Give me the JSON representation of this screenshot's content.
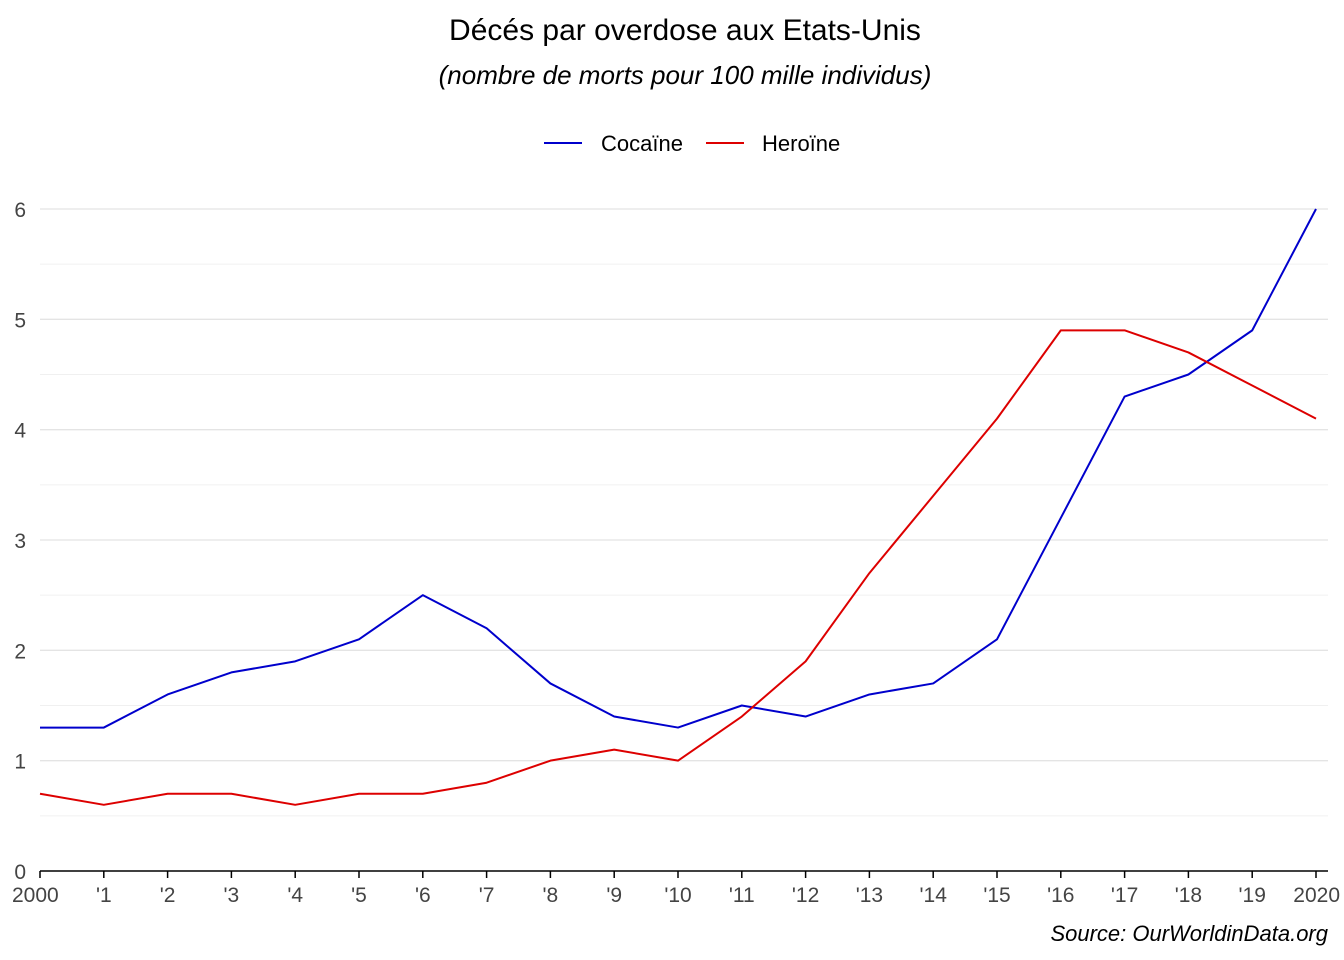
{
  "chart_data": {
    "type": "line",
    "title": "Décés par overdose aux Etats-Unis",
    "subtitle": "(nombre de morts pour 100 mille individus)",
    "xlabel": "",
    "ylabel": "",
    "x": [
      2000,
      2001,
      2002,
      2003,
      2004,
      2005,
      2006,
      2007,
      2008,
      2009,
      2010,
      2011,
      2012,
      2013,
      2014,
      2015,
      2016,
      2017,
      2018,
      2019,
      2020
    ],
    "x_tick_labels": [
      "2000",
      "'1",
      "'2",
      "'3",
      "'4",
      "'5",
      "'6",
      "'7",
      "'8",
      "'9",
      "'10",
      "'11",
      "'12",
      "'13",
      "'14",
      "'15",
      "'16",
      "'17",
      "'18",
      "'19",
      "2020"
    ],
    "y_ticks": [
      0,
      1,
      2,
      3,
      4,
      5,
      6
    ],
    "ylim": [
      0,
      6
    ],
    "grid": true,
    "legend_position": "top",
    "series": [
      {
        "name": "Cocaïne",
        "color": "#0000cc",
        "values": [
          1.3,
          1.3,
          1.6,
          1.8,
          1.9,
          2.1,
          2.5,
          2.2,
          1.7,
          1.4,
          1.3,
          1.5,
          1.4,
          1.6,
          1.7,
          2.1,
          3.2,
          4.3,
          4.5,
          4.9,
          6.0
        ]
      },
      {
        "name": "Heroïne",
        "color": "#dd0000",
        "values": [
          0.7,
          0.6,
          0.7,
          0.7,
          0.6,
          0.7,
          0.7,
          0.8,
          1.0,
          1.1,
          1.0,
          1.4,
          1.9,
          2.7,
          3.4,
          4.1,
          4.9,
          4.9,
          4.7,
          4.4,
          4.1
        ]
      }
    ],
    "source": "Source: OurWorldinData.org"
  }
}
